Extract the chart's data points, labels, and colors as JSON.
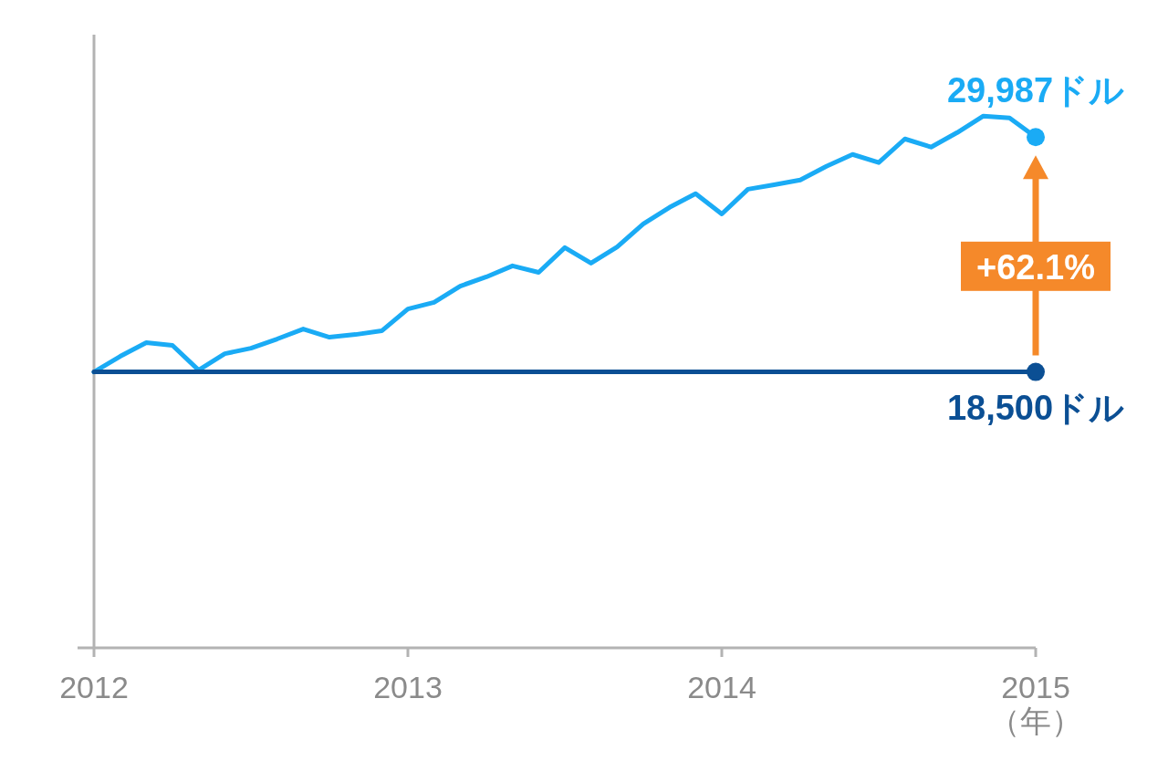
{
  "chart_data": {
    "type": "line",
    "xlabel": "（年）",
    "x": [
      "2012-01",
      "2012-02",
      "2012-03",
      "2012-04",
      "2012-05",
      "2012-06",
      "2012-07",
      "2012-08",
      "2012-09",
      "2012-10",
      "2012-11",
      "2012-12",
      "2013-01",
      "2013-02",
      "2013-03",
      "2013-04",
      "2013-05",
      "2013-06",
      "2013-07",
      "2013-08",
      "2013-09",
      "2013-10",
      "2013-11",
      "2013-12",
      "2014-01",
      "2014-02",
      "2014-03",
      "2014-04",
      "2014-05",
      "2014-06",
      "2014-07",
      "2014-08",
      "2014-09",
      "2014-10",
      "2014-11",
      "2014-12",
      "2015-01"
    ],
    "series": [
      {
        "color": "#1aabf5",
        "values": [
          18500,
          19260,
          19930,
          19800,
          18590,
          19390,
          19660,
          20110,
          20600,
          20200,
          20330,
          20510,
          21580,
          21900,
          22700,
          23150,
          23690,
          23370,
          24580,
          23820,
          24620,
          25740,
          26550,
          27220,
          26230,
          27440,
          27660,
          27890,
          28560,
          29140,
          28740,
          29900,
          29500,
          30210,
          31020,
          30930,
          29987
        ],
        "value_labels": [
          null,
          null,
          null,
          null,
          null,
          null,
          null,
          null,
          null,
          null,
          null,
          null,
          null,
          null,
          null,
          null,
          null,
          null,
          null,
          null,
          null,
          null,
          null,
          null,
          null,
          null,
          null,
          null,
          null,
          null,
          null,
          null,
          null,
          null,
          null,
          null,
          "29,987ドル"
        ]
      },
      {
        "color": "#0b4f94",
        "x": [
          "2012-01",
          "2015-01"
        ],
        "values": [
          18500,
          18500
        ],
        "value_labels": [
          null,
          "18,500ドル"
        ]
      }
    ],
    "annotations": [
      "+62.1%"
    ],
    "xlim": [
      "2012-01",
      "2015-01"
    ],
    "ylim": [
      5000,
      35000
    ],
    "xticks": [
      {
        "value": "2012-01",
        "label": "2012"
      },
      {
        "value": "2013-01",
        "label": "2013"
      },
      {
        "value": "2014-01",
        "label": "2014"
      },
      {
        "value": "2015-01",
        "label": "2015"
      }
    ],
    "tick_labels": "x",
    "grid": false,
    "line_style": "solid"
  }
}
